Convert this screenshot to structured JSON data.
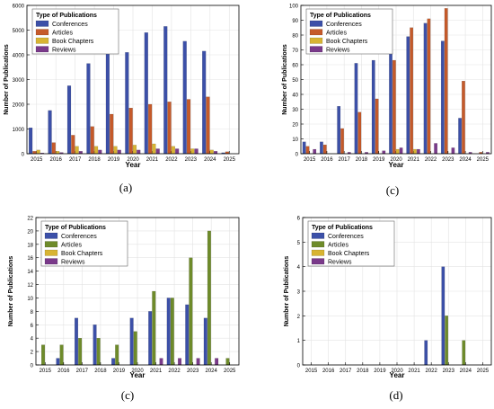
{
  "colors": {
    "conferences": "#3c50a8",
    "articles": "#c55a2a",
    "book_chapters": "#d8b433",
    "reviews": "#7a3a8a",
    "articles_alt": "#6e8b2a",
    "axis": "#000000",
    "grid": "#e3e3e3"
  },
  "chart_data": [
    {
      "type": "bar",
      "caption": "(a)",
      "xlabel": "Year",
      "ylabel": "Number of Publications",
      "legend_title": "Type of Publications",
      "legend_position": "top-left",
      "ylim": [
        0,
        6000
      ],
      "yticks": [
        0,
        1000,
        2000,
        3000,
        4000,
        5000,
        6000
      ],
      "grid": true,
      "categories": [
        "2015",
        "2016",
        "2017",
        "2018",
        "2019",
        "2020",
        "2021",
        "2022",
        "2023",
        "2024",
        "2025"
      ],
      "series": [
        {
          "name": "Conferences",
          "color_key": "conferences",
          "values": [
            1050,
            1750,
            2750,
            3650,
            4450,
            4100,
            4900,
            5150,
            4550,
            4150,
            40
          ]
        },
        {
          "name": "Articles",
          "color_key": "articles",
          "values": [
            100,
            450,
            750,
            1100,
            1600,
            1850,
            2000,
            2100,
            2200,
            2300,
            80
          ]
        },
        {
          "name": "Book Chapters",
          "color_key": "book_chapters",
          "values": [
            150,
            100,
            300,
            300,
            300,
            350,
            400,
            300,
            200,
            150,
            0
          ]
        },
        {
          "name": "Reviews",
          "color_key": "reviews",
          "values": [
            30,
            50,
            100,
            150,
            150,
            150,
            200,
            200,
            200,
            100,
            0
          ]
        }
      ]
    },
    {
      "type": "bar",
      "caption": "(c)",
      "xlabel": "Year",
      "ylabel": "Number of Publications",
      "legend_title": "Type of Publications",
      "legend_position": "top-left",
      "ylim": [
        0,
        100
      ],
      "yticks": [
        0,
        10,
        20,
        30,
        40,
        50,
        60,
        70,
        80,
        90,
        100
      ],
      "grid": true,
      "categories": [
        "2015",
        "2016",
        "2017",
        "2018",
        "2019",
        "2020",
        "2021",
        "2022",
        "2023",
        "2024",
        "2025"
      ],
      "series": [
        {
          "name": "Conferences",
          "color_key": "conferences",
          "values": [
            8,
            8,
            32,
            61,
            63,
            75,
            79,
            88,
            76,
            24,
            0
          ]
        },
        {
          "name": "Articles",
          "color_key": "articles",
          "values": [
            5,
            6,
            17,
            28,
            37,
            63,
            85,
            91,
            98,
            49,
            1
          ]
        },
        {
          "name": "Book Chapters",
          "color_key": "book_chapters",
          "values": [
            0,
            0,
            0,
            0,
            0,
            3,
            3,
            0,
            0,
            0,
            0
          ]
        },
        {
          "name": "Reviews",
          "color_key": "reviews",
          "values": [
            3,
            0,
            1,
            1,
            2,
            4,
            3,
            7,
            4,
            1,
            1
          ]
        }
      ]
    },
    {
      "type": "bar",
      "caption": "(c)",
      "xlabel": "Year",
      "ylabel": "Number of Publications",
      "legend_title": "Type of Publications",
      "legend_position": "top-left",
      "ylim": [
        0,
        22
      ],
      "yticks": [
        0,
        2,
        4,
        6,
        8,
        10,
        12,
        14,
        16,
        18,
        20,
        22
      ],
      "grid": true,
      "categories": [
        "2015",
        "2016",
        "2017",
        "2018",
        "2019",
        "2020",
        "2021",
        "2022",
        "2023",
        "2024",
        "2025"
      ],
      "series": [
        {
          "name": "Conferences",
          "color_key": "conferences",
          "values": [
            0,
            1,
            7,
            6,
            1,
            7,
            8,
            10,
            9,
            7,
            0
          ]
        },
        {
          "name": "Articles",
          "color_key": "articles_alt",
          "values": [
            3,
            3,
            4,
            4,
            3,
            5,
            11,
            10,
            16,
            20,
            1
          ]
        },
        {
          "name": "Book Chapters",
          "color_key": "book_chapters",
          "values": [
            0,
            0,
            0,
            0,
            0,
            0,
            0,
            0,
            0,
            0,
            0
          ]
        },
        {
          "name": "Reviews",
          "color_key": "reviews",
          "values": [
            0,
            0,
            0,
            0,
            0,
            0,
            1,
            1,
            1,
            1,
            0
          ]
        }
      ]
    },
    {
      "type": "bar",
      "caption": "(d)",
      "xlabel": "Year",
      "ylabel": "Number of Publications",
      "legend_title": "Type of Publications",
      "legend_position": "top-left",
      "ylim": [
        0,
        6
      ],
      "yticks": [
        0,
        1,
        2,
        3,
        4,
        5,
        6
      ],
      "grid": true,
      "categories": [
        "2015",
        "2016",
        "2017",
        "2018",
        "2019",
        "2020",
        "2021",
        "2022",
        "2023",
        "2024",
        "2025"
      ],
      "series": [
        {
          "name": "Conferences",
          "color_key": "conferences",
          "values": [
            0,
            0,
            0,
            0,
            0,
            0,
            0,
            1,
            4,
            0,
            0
          ]
        },
        {
          "name": "Articles",
          "color_key": "articles_alt",
          "values": [
            0,
            0,
            0,
            0,
            0,
            0,
            0,
            0,
            2,
            1,
            0
          ]
        },
        {
          "name": "Book Chapters",
          "color_key": "book_chapters",
          "values": [
            0,
            0,
            0,
            0,
            0,
            0,
            0,
            0,
            0,
            0,
            0
          ]
        },
        {
          "name": "Reviews",
          "color_key": "reviews",
          "values": [
            0,
            0,
            0,
            0,
            0,
            0,
            0,
            0,
            0,
            0,
            0
          ]
        }
      ]
    }
  ]
}
